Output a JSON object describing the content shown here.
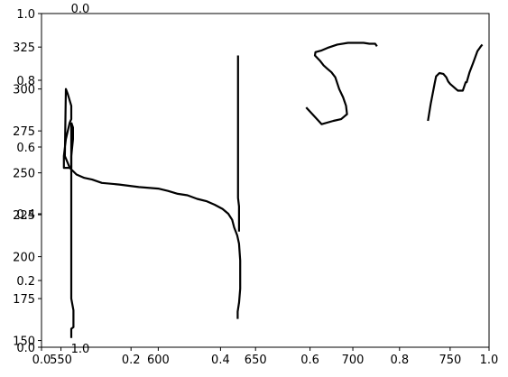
{
  "chart_data": {
    "type": "line",
    "title": "",
    "xlabel": "",
    "ylabel": "",
    "grid": false,
    "legend": "none",
    "line_color": "#000000",
    "data_axes": {
      "xlim": [
        540,
        770
      ],
      "ylim": [
        146,
        345
      ],
      "x_ticks": [
        "550",
        "600",
        "650",
        "700",
        "750"
      ],
      "y_ticks": [
        "150",
        "175",
        "200",
        "225",
        "250",
        "275",
        "300",
        "325"
      ]
    },
    "overlay_axes": {
      "xlim": [
        0,
        1
      ],
      "ylim": [
        0,
        1
      ],
      "tick_labels": [
        "0.0",
        "0.2",
        "0.4",
        "0.6",
        "0.8",
        "1.0"
      ]
    },
    "stray_labels": [
      {
        "name": "top-stray-label",
        "text": "0.0"
      },
      {
        "name": "bottom-stray-label",
        "text": "1.0"
      }
    ],
    "series": [
      {
        "x": [
          555.3,
          555.3,
          556.4,
          556.4,
          555.3,
          555.3,
          555.3,
          555.3
        ],
        "y": [
          151.5,
          157,
          158,
          168,
          175,
          180,
          260,
          280
        ]
      },
      {
        "x": [
          555.3,
          556.2,
          556.2,
          555.3,
          555.3,
          551.5,
          551.5,
          552.5,
          553.5,
          554.5,
          555.3,
          555.3,
          553.5,
          552.5,
          552.0,
          554.5,
          558.0,
          562.0,
          566.0,
          571.0,
          580.0,
          590.0,
          600.0,
          605.0,
          610.0,
          615.0,
          620.0,
          625.0,
          629.0,
          633.0,
          636.0,
          638.0,
          639.0,
          640.6,
          641.5,
          642.1,
          642.1,
          641.5,
          641.5,
          640.8,
          640.8
        ],
        "y": [
          280,
          277,
          270,
          260,
          253,
          253,
          260,
          270,
          275,
          280,
          282,
          290,
          297,
          300,
          260,
          253,
          249,
          247,
          246,
          244,
          243,
          241.5,
          240.6,
          239.2,
          237.5,
          236.6,
          234.5,
          233.0,
          231.0,
          228.5,
          225.6,
          222.0,
          217.5,
          212.7,
          207.8,
          197.8,
          180.9,
          172.3,
          172.5,
          167.3,
          162.9
        ]
      },
      {
        "x": [
          641.0,
          641.0,
          641.5,
          641.5
        ],
        "y": [
          320,
          235,
          230,
          215
        ]
      },
      {
        "x": [
          676.0,
          684.0,
          690.0,
          694.0,
          696.0,
          697.0,
          696.5,
          695.0,
          693.0,
          691.0,
          689.0,
          687.0,
          685.0,
          683.0,
          680.5,
          680.8,
          684.0,
          687.0,
          692.0,
          697.5,
          701.0,
          705.5,
          708.5,
          711.5,
          712.4
        ],
        "y": [
          289,
          279,
          281,
          282,
          284,
          285,
          290,
          295,
          300,
          307,
          310,
          312,
          314,
          317,
          320,
          322,
          323,
          324.5,
          326.5,
          327.5,
          327.5,
          327.5,
          327,
          327,
          325.5
        ]
      },
      {
        "x": [
          738.6,
          740.0,
          742.0,
          742.8,
          744.5,
          746.5,
          748.0,
          749.0,
          750.0,
          752.0,
          753.0,
          754.0,
          755.0,
          756.5,
          758.0,
          758.5,
          760.0,
          762.0,
          764.0,
          765.5,
          766.5
        ],
        "y": [
          281,
          291,
          303,
          307.5,
          309.5,
          309.0,
          307.0,
          304.5,
          303.0,
          301.0,
          300.0,
          299.0,
          299.0,
          299.0,
          304.0,
          304.0,
          310.0,
          316.0,
          322.5,
          325.0,
          326.5
        ]
      }
    ]
  }
}
